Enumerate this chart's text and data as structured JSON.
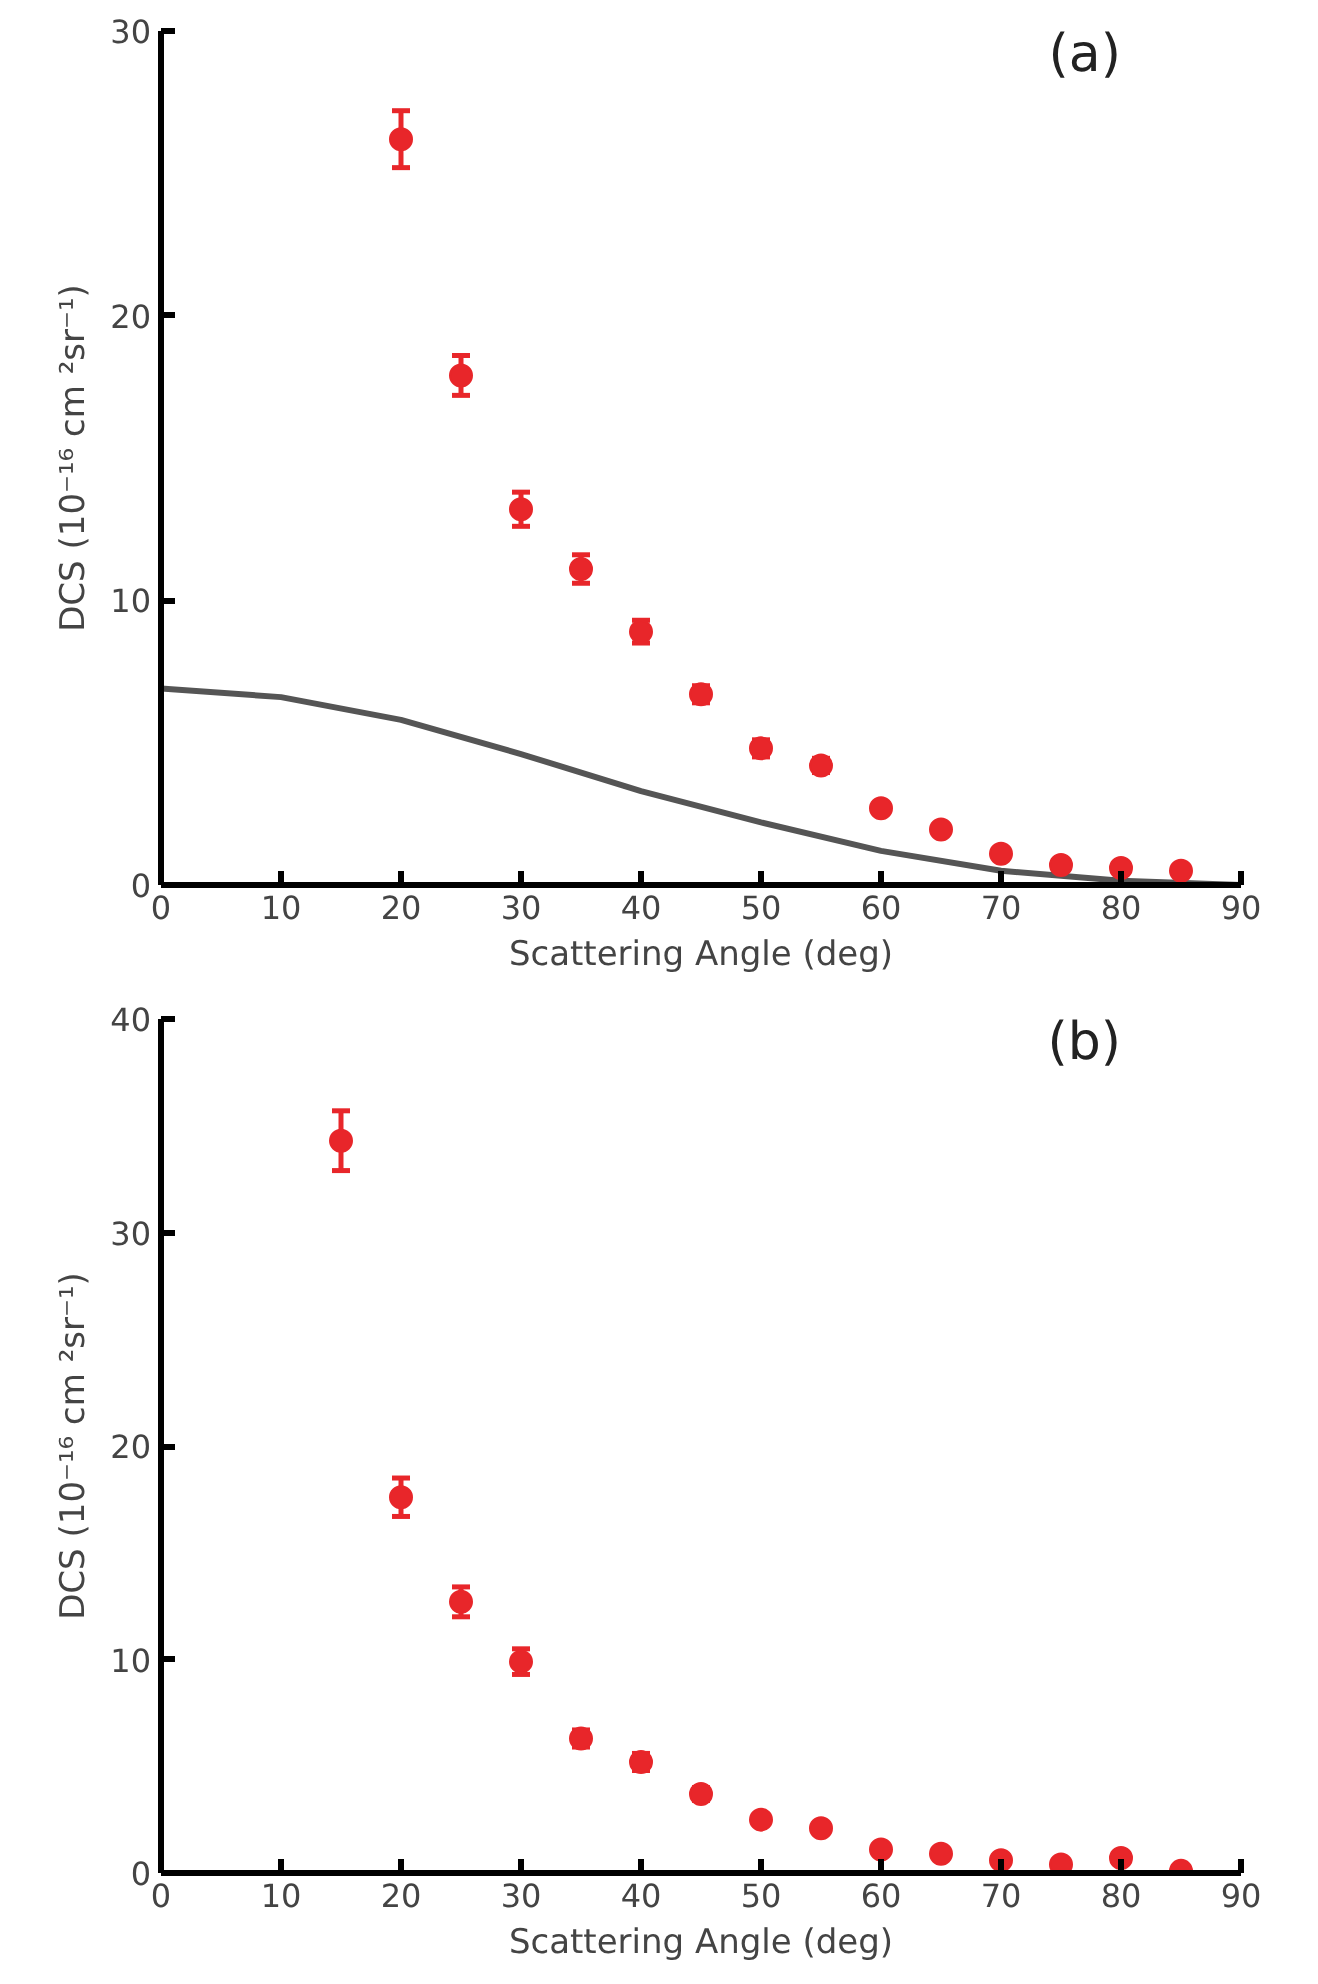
{
  "chart_data": [
    {
      "type": "scatter",
      "xlabel": "Scattering Angle (deg)",
      "ylabel": "DCS (10⁻¹⁶ cm ²sr⁻¹)",
      "annotations": [
        "(a)"
      ],
      "xlim": [
        0,
        90
      ],
      "ylim": [
        0,
        30
      ],
      "xticks": [
        0,
        10,
        20,
        30,
        40,
        50,
        60,
        70,
        80,
        90
      ],
      "yticks": [
        0,
        10,
        20,
        30
      ],
      "grid": false,
      "marker": "circle",
      "series": [
        {
          "type": "line",
          "marker": "none",
          "color": "#555555",
          "x": [
            0,
            10,
            20,
            30,
            40,
            50,
            60,
            70,
            80,
            90
          ],
          "values": [
            6.9,
            6.6,
            5.8,
            4.6,
            3.3,
            2.2,
            1.2,
            0.5,
            0.15,
            0
          ]
        },
        {
          "color": "#e8262a",
          "x": [
            20,
            25,
            30,
            35,
            40,
            45,
            50,
            55,
            60,
            65,
            70,
            75,
            80,
            85
          ],
          "values": [
            26.2,
            17.9,
            13.2,
            11.1,
            8.9,
            6.7,
            4.8,
            4.2,
            2.7,
            1.95,
            1.1,
            0.7,
            0.6,
            0.5
          ],
          "errors": [
            1.0,
            0.7,
            0.6,
            0.5,
            0.4,
            0.3,
            0.3,
            0.25,
            null,
            null,
            null,
            null,
            null,
            null
          ]
        }
      ]
    },
    {
      "type": "scatter",
      "xlabel": "Scattering Angle (deg)",
      "ylabel": "DCS (10⁻¹⁶ cm ²sr⁻¹)",
      "annotations": [
        "(b)"
      ],
      "xlim": [
        0,
        90
      ],
      "ylim": [
        0,
        40
      ],
      "xticks": [
        0,
        10,
        20,
        30,
        40,
        50,
        60,
        70,
        80,
        90
      ],
      "yticks": [
        0,
        10,
        20,
        30,
        40
      ],
      "grid": false,
      "marker": "circle",
      "series": [
        {
          "color": "#e8262a",
          "x": [
            15,
            20,
            25,
            30,
            35,
            40,
            45,
            50,
            55,
            60,
            65,
            70,
            75,
            80,
            85
          ],
          "values": [
            34.3,
            17.6,
            12.7,
            9.9,
            6.3,
            5.2,
            3.7,
            2.5,
            2.1,
            1.1,
            0.9,
            0.6,
            0.4,
            0.7,
            0.1
          ],
          "errors": [
            1.4,
            0.9,
            0.7,
            0.6,
            0.4,
            0.4,
            0.3,
            null,
            null,
            null,
            null,
            null,
            null,
            null,
            null
          ]
        }
      ]
    }
  ]
}
